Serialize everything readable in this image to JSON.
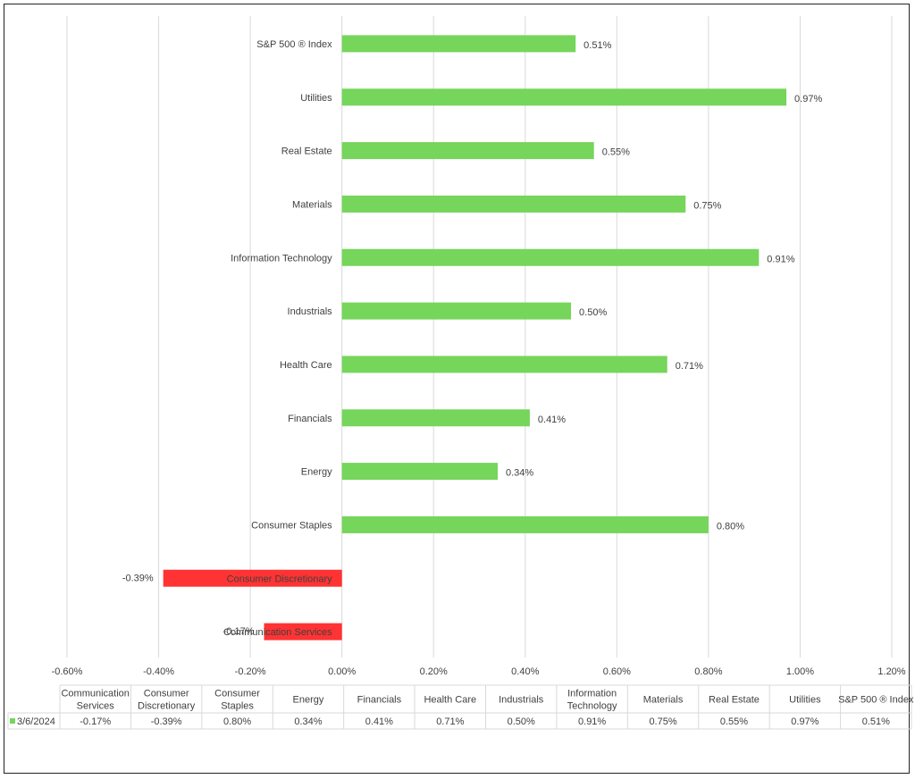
{
  "chart_data": {
    "type": "bar",
    "orientation": "horizontal",
    "title": "",
    "xlabel": "",
    "ylabel": "",
    "categories": [
      "Communication Services",
      "Consumer Discretionary",
      "Consumer Staples",
      "Energy",
      "Financials",
      "Health Care",
      "Industrials",
      "Information Technology",
      "Materials",
      "Real Estate",
      "Utilities",
      "S&P 500 ® Index"
    ],
    "table_headers": [
      [
        "Communication",
        "Services"
      ],
      [
        "Consumer",
        "Discretionary"
      ],
      [
        "Consumer",
        "Staples"
      ],
      [
        "Energy"
      ],
      [
        "Financials"
      ],
      [
        "Health Care"
      ],
      [
        "Industrials"
      ],
      [
        "Information",
        "Technology"
      ],
      [
        "Materials"
      ],
      [
        "Real Estate"
      ],
      [
        "Utilities"
      ],
      [
        "S&P 500 ® Index"
      ]
    ],
    "series": [
      {
        "name": "3/6/2024",
        "values": [
          -0.17,
          -0.39,
          0.8,
          0.34,
          0.41,
          0.71,
          0.5,
          0.91,
          0.75,
          0.55,
          0.97,
          0.51
        ],
        "labels": [
          "-0.17%",
          "-0.39%",
          "0.80%",
          "0.34%",
          "0.41%",
          "0.71%",
          "0.50%",
          "0.91%",
          "0.75%",
          "0.55%",
          "0.97%",
          "0.51%"
        ]
      }
    ],
    "xlim": [
      -0.6,
      1.2
    ],
    "xticks": [
      -0.6,
      -0.4,
      -0.2,
      0.0,
      0.2,
      0.4,
      0.6,
      0.8,
      1.0,
      1.2
    ],
    "xtick_labels": [
      "-0.60%",
      "-0.40%",
      "-0.20%",
      "0.00%",
      "0.20%",
      "0.40%",
      "0.60%",
      "0.80%",
      "1.00%",
      "1.20%"
    ],
    "grid": "vertical",
    "data_table": true,
    "colors": {
      "positive": "#76d55b",
      "negative": "#ff3333",
      "grid": "#d9d9d9",
      "text": "#404040"
    }
  }
}
